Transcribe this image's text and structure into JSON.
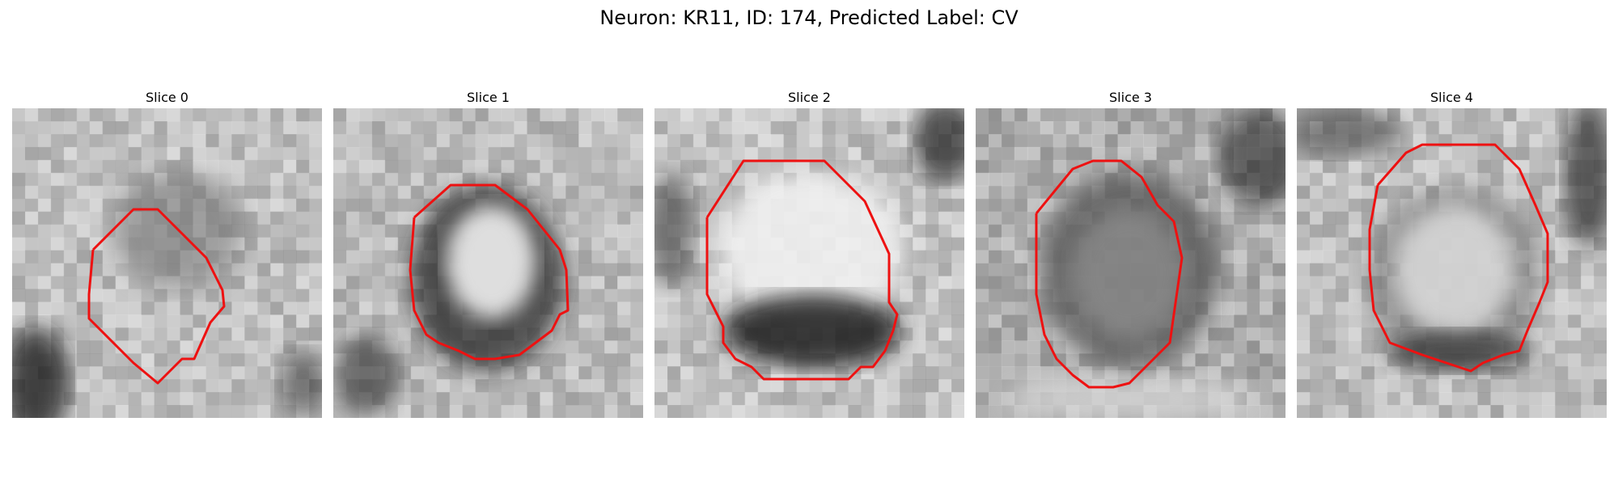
{
  "figure": {
    "title": "Neuron: KR11, ID: 174, Predicted Label: CV",
    "contour_color": "#ee1111"
  },
  "panels": [
    {
      "title": "Slice 0"
    },
    {
      "title": "Slice 1"
    },
    {
      "title": "Slice 2"
    },
    {
      "title": "Slice 3"
    },
    {
      "title": "Slice 4"
    }
  ]
}
